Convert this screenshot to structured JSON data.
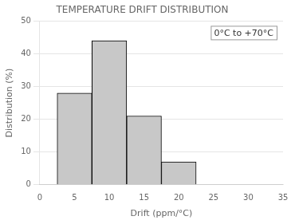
{
  "chart_data": {
    "type": "histogram",
    "title": "TEMPERATURE DRIFT DISTRIBUTION",
    "xlabel": "Drift (ppm/°C)",
    "ylabel": "Distribution (%)",
    "annotation": "0°C to +70°C",
    "bins": [
      2.5,
      7.5,
      12.5,
      17.5,
      22.5
    ],
    "values": [
      28,
      44,
      21,
      7
    ],
    "color": "#c8c8c8",
    "xlim": [
      0,
      35
    ],
    "xticks": [
      0,
      5,
      10,
      15,
      20,
      25,
      30,
      35
    ],
    "ylim": [
      0,
      50
    ],
    "yticks": [
      0,
      10,
      20,
      30,
      40,
      50
    ],
    "grid": "y"
  }
}
